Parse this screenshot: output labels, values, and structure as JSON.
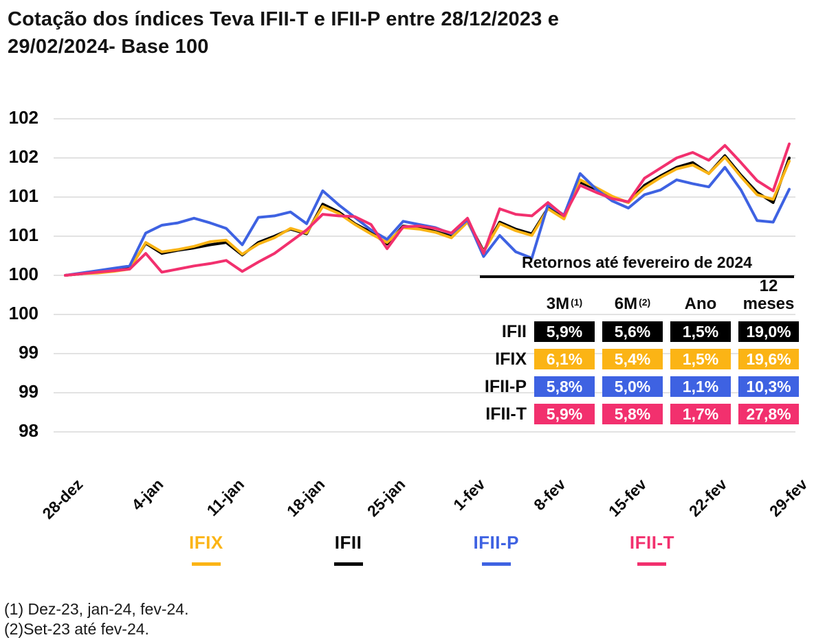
{
  "title": {
    "line1": "Cotação dos índices Teva IFII-T e IFII-P entre 28/12/2023 e",
    "line2": "29/02/2024- Base 100"
  },
  "chart_data": {
    "type": "line",
    "title": "Cotação dos índices Teva IFII-T e IFII-P entre 28/12/2023 e 29/02/2024- Base 100",
    "base": 100,
    "grid": "horizontal",
    "y_axis": {
      "min": 98,
      "max": 102,
      "tick_step": 0.5,
      "tick_labels": [
        "102",
        "102",
        "101",
        "101",
        "100",
        "100",
        "99",
        "99",
        "98"
      ]
    },
    "x_axis": {
      "tick_labels": [
        "28-dez",
        "4-jan",
        "11-jan",
        "18-jan",
        "25-jan",
        "1-fev",
        "8-fev",
        "15-fev",
        "22-fev",
        "29-fev"
      ]
    },
    "x_dates": [
      "28/12",
      "29/12",
      "01/01",
      "02/01",
      "03/01",
      "04/01",
      "05/01",
      "08/01",
      "09/01",
      "10/01",
      "11/01",
      "12/01",
      "15/01",
      "16/01",
      "17/01",
      "18/01",
      "19/01",
      "22/01",
      "23/01",
      "24/01",
      "25/01",
      "26/01",
      "29/01",
      "30/01",
      "31/01",
      "01/02",
      "02/02",
      "05/02",
      "06/02",
      "07/02",
      "08/02",
      "09/02",
      "12/02",
      "13/02",
      "14/02",
      "15/02",
      "16/02",
      "19/02",
      "20/02",
      "21/02",
      "22/02",
      "23/02",
      "26/02",
      "27/02",
      "28/02",
      "29/02"
    ],
    "series": [
      {
        "name": "IFII",
        "color": "#000000",
        "values": [
          100.0,
          100.02,
          100.04,
          100.06,
          100.09,
          100.41,
          100.28,
          100.32,
          100.35,
          100.39,
          100.42,
          100.26,
          100.42,
          100.5,
          100.59,
          100.53,
          100.91,
          100.81,
          100.66,
          100.55,
          100.4,
          100.63,
          100.61,
          100.56,
          100.5,
          100.7,
          100.31,
          100.68,
          100.59,
          100.53,
          100.86,
          100.74,
          101.19,
          101.1,
          101.0,
          100.93,
          101.15,
          101.27,
          101.38,
          101.44,
          101.3,
          101.53,
          101.28,
          101.06,
          100.93,
          101.5
        ]
      },
      {
        "name": "IFIX",
        "color": "#FBB415",
        "values": [
          100.0,
          100.02,
          100.03,
          100.05,
          100.08,
          100.42,
          100.3,
          100.33,
          100.37,
          100.43,
          100.45,
          100.27,
          100.4,
          100.48,
          100.6,
          100.54,
          100.88,
          100.79,
          100.65,
          100.53,
          100.42,
          100.61,
          100.59,
          100.55,
          100.48,
          100.68,
          100.3,
          100.66,
          100.57,
          100.51,
          100.85,
          100.72,
          101.22,
          101.12,
          101.01,
          100.93,
          101.12,
          101.25,
          101.36,
          101.41,
          101.3,
          101.51,
          101.26,
          101.03,
          100.97,
          101.46
        ]
      },
      {
        "name": "IFII-P",
        "color": "#3E62E2",
        "values": [
          100.0,
          100.03,
          100.06,
          100.09,
          100.12,
          100.54,
          100.64,
          100.67,
          100.73,
          100.67,
          100.6,
          100.39,
          100.74,
          100.76,
          100.81,
          100.66,
          101.08,
          100.9,
          100.74,
          100.58,
          100.46,
          100.69,
          100.65,
          100.61,
          100.53,
          100.71,
          100.24,
          100.51,
          100.3,
          100.22,
          100.9,
          100.77,
          101.3,
          101.1,
          100.95,
          100.86,
          101.03,
          101.09,
          101.22,
          101.17,
          101.13,
          101.38,
          101.09,
          100.7,
          100.68,
          101.1
        ]
      },
      {
        "name": "IFII-T",
        "color": "#F2306E",
        "values": [
          100.0,
          100.02,
          100.04,
          100.06,
          100.08,
          100.28,
          100.04,
          100.08,
          100.12,
          100.15,
          100.19,
          100.05,
          100.17,
          100.28,
          100.43,
          100.58,
          100.78,
          100.76,
          100.75,
          100.65,
          100.34,
          100.62,
          100.63,
          100.6,
          100.54,
          100.73,
          100.28,
          100.85,
          100.78,
          100.76,
          100.93,
          100.76,
          101.15,
          101.06,
          100.98,
          100.94,
          101.24,
          101.37,
          101.5,
          101.57,
          101.47,
          101.66,
          101.44,
          101.21,
          101.08,
          101.68
        ]
      }
    ]
  },
  "table": {
    "title": "Retornos até fevereiro de 2024",
    "columns": [
      {
        "label": "3M",
        "sup": "(1)",
        "stacked": false
      },
      {
        "label": "6M",
        "sup": "(2)",
        "stacked": false
      },
      {
        "label": "Ano",
        "sup": "",
        "stacked": false
      },
      {
        "label": "12 meses",
        "sup": "",
        "stacked": true
      }
    ],
    "rows": [
      {
        "label": "IFII",
        "color": "#000000",
        "values": [
          "5,9%",
          "5,6%",
          "1,5%",
          "19,0%"
        ]
      },
      {
        "label": "IFIX",
        "color": "#FBB415",
        "values": [
          "6,1%",
          "5,4%",
          "1,5%",
          "19,6%"
        ]
      },
      {
        "label": "IFII-P",
        "color": "#3E62E2",
        "values": [
          "5,8%",
          "5,0%",
          "1,1%",
          "10,3%"
        ]
      },
      {
        "label": "IFII-T",
        "color": "#F2306E",
        "values": [
          "5,9%",
          "5,8%",
          "1,7%",
          "27,8%"
        ]
      }
    ]
  },
  "legend": {
    "items": [
      {
        "label": "IFIX",
        "color": "#FBB415"
      },
      {
        "label": "IFII",
        "color": "#000000"
      },
      {
        "label": "IFII-P",
        "color": "#3E62E2"
      },
      {
        "label": "IFII-T",
        "color": "#F2306E"
      }
    ]
  },
  "footnotes": [
    "(1) Dez-23, jan-24, fev-24.",
    "(2)Set-23 até fev-24."
  ]
}
